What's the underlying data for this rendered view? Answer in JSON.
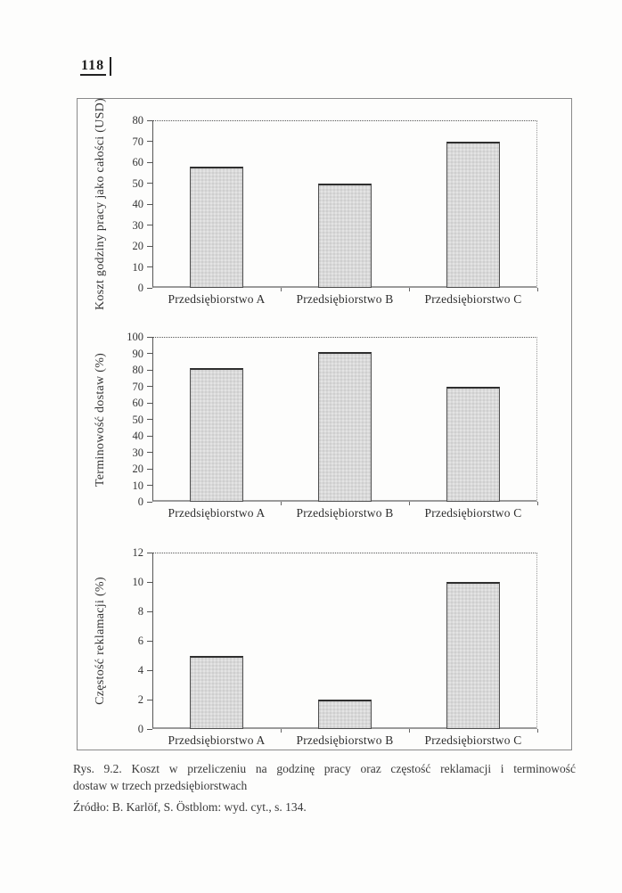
{
  "page": {
    "page_number": "118",
    "caption_line1": "Rys. 9.2. Koszt w przeliczeniu na godzinę pracy oraz częstość reklamacji i terminowość",
    "caption_line2": "dostaw w trzech przedsiębiorstwach",
    "source": "Źródło: B. Karlöf, S. Östblom: wyd. cyt., s. 134."
  },
  "colors": {
    "bar_fill": "#d9d9d9",
    "bar_border": "#4f4f4f",
    "axis": "#555555",
    "frame": "#8a8a8a",
    "text": "#383838"
  },
  "chart_data": [
    {
      "type": "bar",
      "title": "",
      "categories": [
        "Przedsiębiorstwo A",
        "Przedsiębiorstwo B",
        "Przedsiębiorstwo C"
      ],
      "values": [
        58,
        50,
        70
      ],
      "xlabel": "",
      "ylabel": "Koszt godziny pracy jako całości (USD)",
      "ylim": [
        0,
        80
      ],
      "ytick_step": 10,
      "grid": "dotted top border at ymax and dotted right border only",
      "legend": "none"
    },
    {
      "type": "bar",
      "title": "",
      "categories": [
        "Przedsiębiorstwo A",
        "Przedsiębiorstwo B",
        "Przedsiębiorstwo C"
      ],
      "values": [
        81,
        91,
        70
      ],
      "xlabel": "",
      "ylabel": "Terminowość dostaw (%)",
      "ylim": [
        0,
        100
      ],
      "ytick_step": 10,
      "grid": "dotted top border at ymax and dotted right border only",
      "legend": "none"
    },
    {
      "type": "bar",
      "title": "",
      "categories": [
        "Przedsiębiorstwo A",
        "Przedsiębiorstwo B",
        "Przedsiębiorstwo C"
      ],
      "values": [
        5,
        2,
        10
      ],
      "xlabel": "",
      "ylabel": "Częstość reklamacji (%)",
      "ylim": [
        0,
        12
      ],
      "ytick_step": 2,
      "grid": "dotted top border at ymax and dotted right border only",
      "legend": "none"
    }
  ]
}
